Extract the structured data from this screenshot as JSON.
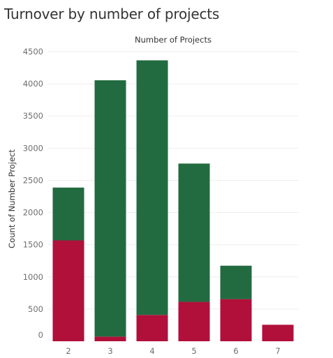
{
  "page": {
    "title": "Turnover by number of projects"
  },
  "chart_data": {
    "type": "bar",
    "stacked": true,
    "title": "Number of Projects",
    "xlabel": "Number of Projects",
    "ylabel": "Count of Number Project",
    "categories": [
      "2",
      "3",
      "4",
      "5",
      "6",
      "7"
    ],
    "series": [
      {
        "values": [
          1567,
          72,
          409,
          612,
          655,
          256
        ],
        "color": "#b0103a"
      },
      {
        "values": [
          821,
          3983,
          3956,
          2149,
          519,
          0
        ],
        "color": "#226b40"
      }
    ],
    "ylim": [
      0,
      4500
    ],
    "yticks": [
      0,
      500,
      1000,
      1500,
      2000,
      2500,
      3000,
      3500,
      4000,
      4500
    ],
    "grid": true,
    "legend": "none"
  }
}
